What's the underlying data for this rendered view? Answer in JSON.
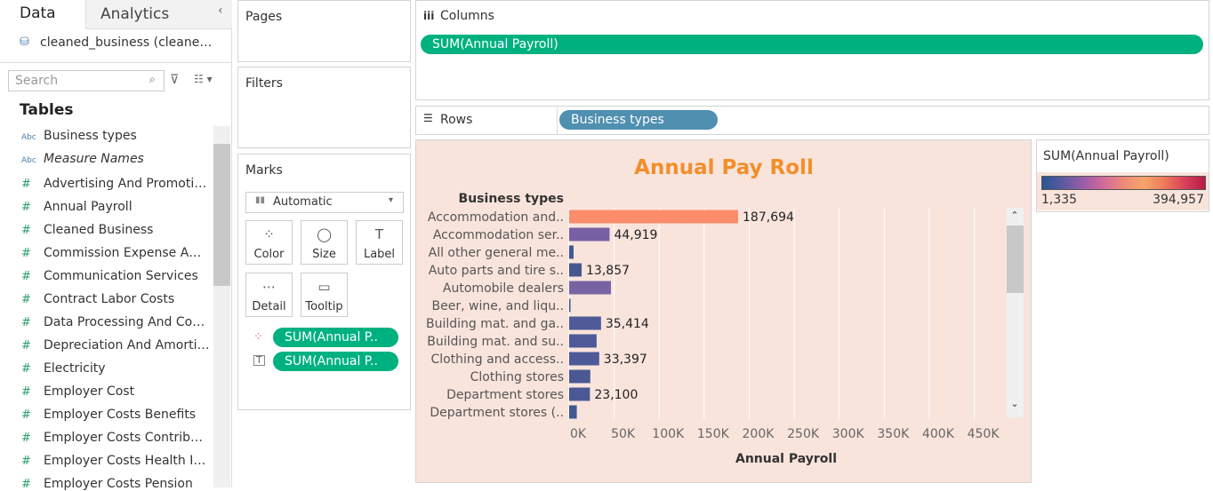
{
  "left_pane": {
    "tabs": [
      "Data",
      "Analytics"
    ],
    "datasource": "cleaned_business (cleane…",
    "search_placeholder": "Search",
    "section": "Tables",
    "dimensions": [
      "Business types",
      "Measure Names"
    ],
    "measures": [
      "Advertising And Promoti…",
      "Annual Payroll",
      "Cleaned Business",
      "Commission Expense A…",
      "Communication Services",
      "Contract Labor Costs",
      "Data Processing And Co…",
      "Depreciation And Amorti…",
      "Electricity",
      "Employer Cost",
      "Employer Costs Benefits",
      "Employer Costs Contrib…",
      "Employer Costs Health I…",
      "Employer Costs Pension"
    ]
  },
  "cards": {
    "pages": "Pages",
    "filters": "Filters",
    "marks": "Marks",
    "mark_type": "Automatic",
    "buttons": [
      "Color",
      "Size",
      "Label",
      "Detail",
      "Tooltip"
    ],
    "pills": [
      "SUM(Annual P..",
      "SUM(Annual P.."
    ]
  },
  "shelves": {
    "columns": "Columns",
    "columns_pill": "SUM(Annual Payroll)",
    "rows": "Rows",
    "rows_pill": "Business types"
  },
  "legend": {
    "title": "SUM(Annual Payroll)",
    "labels": [
      "1,335",
      "394,957"
    ]
  },
  "chart_data": {
    "type": "bar",
    "orientation": "horizontal",
    "title": "Annual Pay Roll",
    "y_header": "Business types",
    "x_label": "Annual Payroll",
    "categories": [
      "Accommodation and..",
      "Accommodation ser..",
      "All other general me..",
      "Auto parts and tire s..",
      "Automobile dealers",
      "Beer, wine, and liqu..",
      "Building mat. and ga..",
      "Building mat. and su..",
      "Clothing and access..",
      "Clothing stores",
      "Department stores",
      "Department stores (.."
    ],
    "values": [
      187694,
      44919,
      4900,
      13857,
      46400,
      1500,
      35414,
      30500,
      33397,
      23500,
      23100,
      8500
    ],
    "value_labels": [
      "187,694",
      "44,919",
      null,
      "13,857",
      null,
      null,
      "35,414",
      null,
      "33,397",
      null,
      "23,100",
      null
    ],
    "colors": [
      "#fb8c6c",
      "#7760a4",
      "#3f5a91",
      "#46598f",
      "#7763a4",
      "#3b5b90",
      "#4f5a98",
      "#4d5a97",
      "#4e5a98",
      "#4a5993",
      "#4a5993",
      "#3f5a91"
    ],
    "xlim": [
      0,
      485000
    ],
    "xticks": [
      {
        "value": 0,
        "label": "0K"
      },
      {
        "value": 50000,
        "label": "50K"
      },
      {
        "value": 100000,
        "label": "100K"
      },
      {
        "value": 150000,
        "label": "150K"
      },
      {
        "value": 200000,
        "label": "200K"
      },
      {
        "value": 250000,
        "label": "250K"
      },
      {
        "value": 300000,
        "label": "300K"
      },
      {
        "value": 350000,
        "label": "350K"
      },
      {
        "value": 400000,
        "label": "400K"
      },
      {
        "value": 450000,
        "label": "450K"
      }
    ],
    "grid": true
  }
}
